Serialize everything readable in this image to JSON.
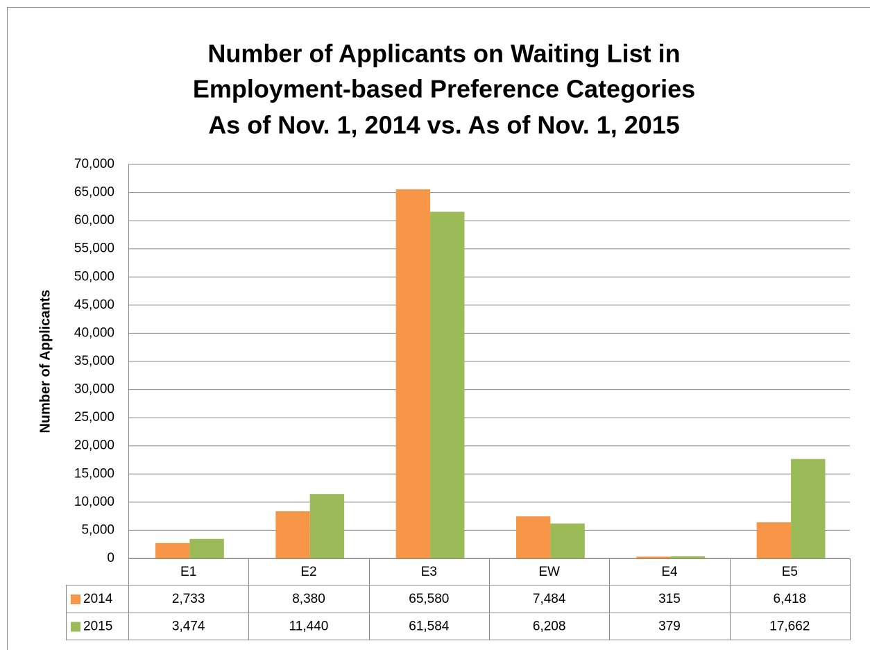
{
  "chart_data": {
    "type": "bar",
    "title": [
      "Number of Applicants on Waiting List in",
      "Employment-based Preference Categories",
      "As of Nov. 1, 2014 vs. As of Nov. 1, 2015"
    ],
    "y_label": "Number of Applicants",
    "categories": [
      "E1",
      "E2",
      "E3",
      "EW",
      "E4",
      "E5"
    ],
    "series": [
      {
        "name": "2014",
        "color": "#f79646",
        "values": [
          2733,
          8380,
          65580,
          7484,
          315,
          6418
        ],
        "value_labels": [
          "2,733",
          "8,380",
          "65,580",
          "7,484",
          "315",
          "6,418"
        ]
      },
      {
        "name": "2015",
        "color": "#9bbb59",
        "values": [
          3474,
          11440,
          61584,
          6208,
          379,
          17662
        ],
        "value_labels": [
          "3,474",
          "11,440",
          "61,584",
          "6,208",
          "379",
          "17,662"
        ]
      }
    ],
    "ylim": [
      0,
      70000
    ],
    "yticks": [
      0,
      {
        "value": 5000,
        "label": "5,000"
      },
      {
        "value": 10000,
        "label": "10,000"
      },
      {
        "value": 15000,
        "label": "15,000"
      },
      {
        "value": 20000,
        "label": "20,000"
      },
      {
        "value": 25000,
        "label": "25,000"
      },
      {
        "value": 30000,
        "label": "30,000"
      },
      {
        "value": 35000,
        "label": "35,000"
      },
      {
        "value": 40000,
        "label": "40,000"
      },
      {
        "value": 45000,
        "label": "45,000"
      },
      {
        "value": 50000,
        "label": "50,000"
      },
      {
        "value": 55000,
        "label": "55,000"
      },
      {
        "value": 60000,
        "label": "60,000"
      },
      {
        "value": 65000,
        "label": "65,000"
      },
      {
        "value": 70000,
        "label": "70,000"
      }
    ],
    "grid": true
  }
}
